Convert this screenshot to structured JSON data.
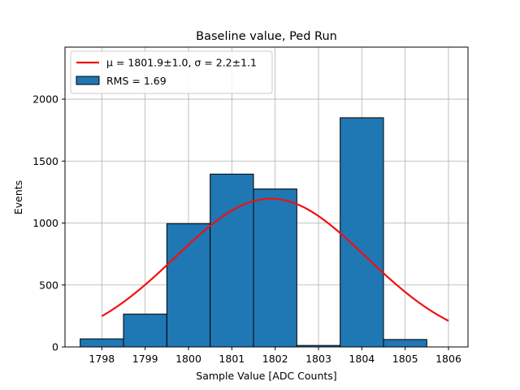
{
  "chart_data": {
    "type": "histogram",
    "title": "Baseline value, Ped Run",
    "xlabel": "Sample Value [ADC Counts]",
    "ylabel": "Events",
    "xlim": [
      1797.15,
      1806.45
    ],
    "ylim": [
      0,
      2420
    ],
    "xticks": [
      1798,
      1799,
      1800,
      1801,
      1802,
      1803,
      1804,
      1805,
      1806
    ],
    "yticks": [
      0,
      500,
      1000,
      1500,
      2000
    ],
    "grid": true,
    "bins": [
      {
        "left": 1797.5,
        "right": 1798.5,
        "count": 65
      },
      {
        "left": 1798.5,
        "right": 1799.5,
        "count": 265
      },
      {
        "left": 1799.5,
        "right": 1800.5,
        "count": 995
      },
      {
        "left": 1800.5,
        "right": 1801.5,
        "count": 1395
      },
      {
        "left": 1801.5,
        "right": 1802.5,
        "count": 1275
      },
      {
        "left": 1802.5,
        "right": 1803.5,
        "count": 12
      },
      {
        "left": 1803.5,
        "right": 1804.5,
        "count": 1850
      },
      {
        "left": 1804.5,
        "right": 1805.5,
        "count": 60
      }
    ],
    "fit": {
      "mu": 1801.9,
      "sigma": 2.2,
      "amplitude": 1197,
      "x_range": [
        1798,
        1806
      ],
      "color": "#ee1111"
    },
    "bar_color": "#1f77b4",
    "legend": {
      "position": "top-left",
      "fit_label": "μ = 1801.9±1.0, σ = 2.2±1.1",
      "hist_label": "RMS = 1.69"
    }
  }
}
